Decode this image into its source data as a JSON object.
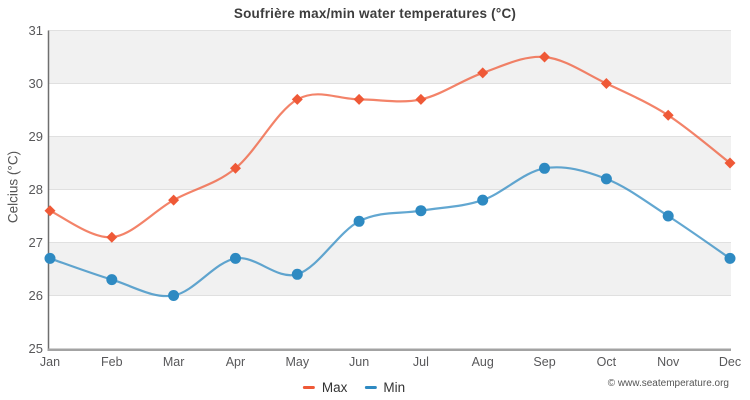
{
  "title": "Soufrière max/min water temperatures (°C)",
  "y_axis_title": "Celcius (°C)",
  "copyright": "© www.seatemperature.org",
  "legend": {
    "items": [
      {
        "label": "Max",
        "color": "#ef5937"
      },
      {
        "label": "Min",
        "color": "#2e8ac2"
      }
    ]
  },
  "chart_data": {
    "type": "line",
    "title": "Soufrière max/min water temperatures (°C)",
    "xlabel": "",
    "ylabel": "Celcius (°C)",
    "categories": [
      "Jan",
      "Feb",
      "Mar",
      "Apr",
      "May",
      "Jun",
      "Jul",
      "Aug",
      "Sep",
      "Oct",
      "Nov",
      "Dec"
    ],
    "series": [
      {
        "name": "Max",
        "color": "#ef5937",
        "marker": "diamond",
        "values": [
          27.6,
          27.1,
          27.8,
          28.4,
          29.7,
          29.7,
          29.7,
          30.2,
          30.5,
          30.0,
          29.4,
          28.5
        ]
      },
      {
        "name": "Min",
        "color": "#2e8ac2",
        "marker": "circle",
        "values": [
          26.7,
          26.3,
          26.0,
          26.7,
          26.4,
          27.4,
          27.6,
          27.8,
          28.4,
          28.2,
          27.5,
          26.7
        ]
      }
    ],
    "ylim": [
      25,
      31
    ],
    "yticks": [
      25,
      26,
      27,
      28,
      29,
      30,
      31
    ],
    "grid": true,
    "plot_bands": "alternating-gray",
    "curve": "smooth",
    "legend_position": "bottom"
  }
}
